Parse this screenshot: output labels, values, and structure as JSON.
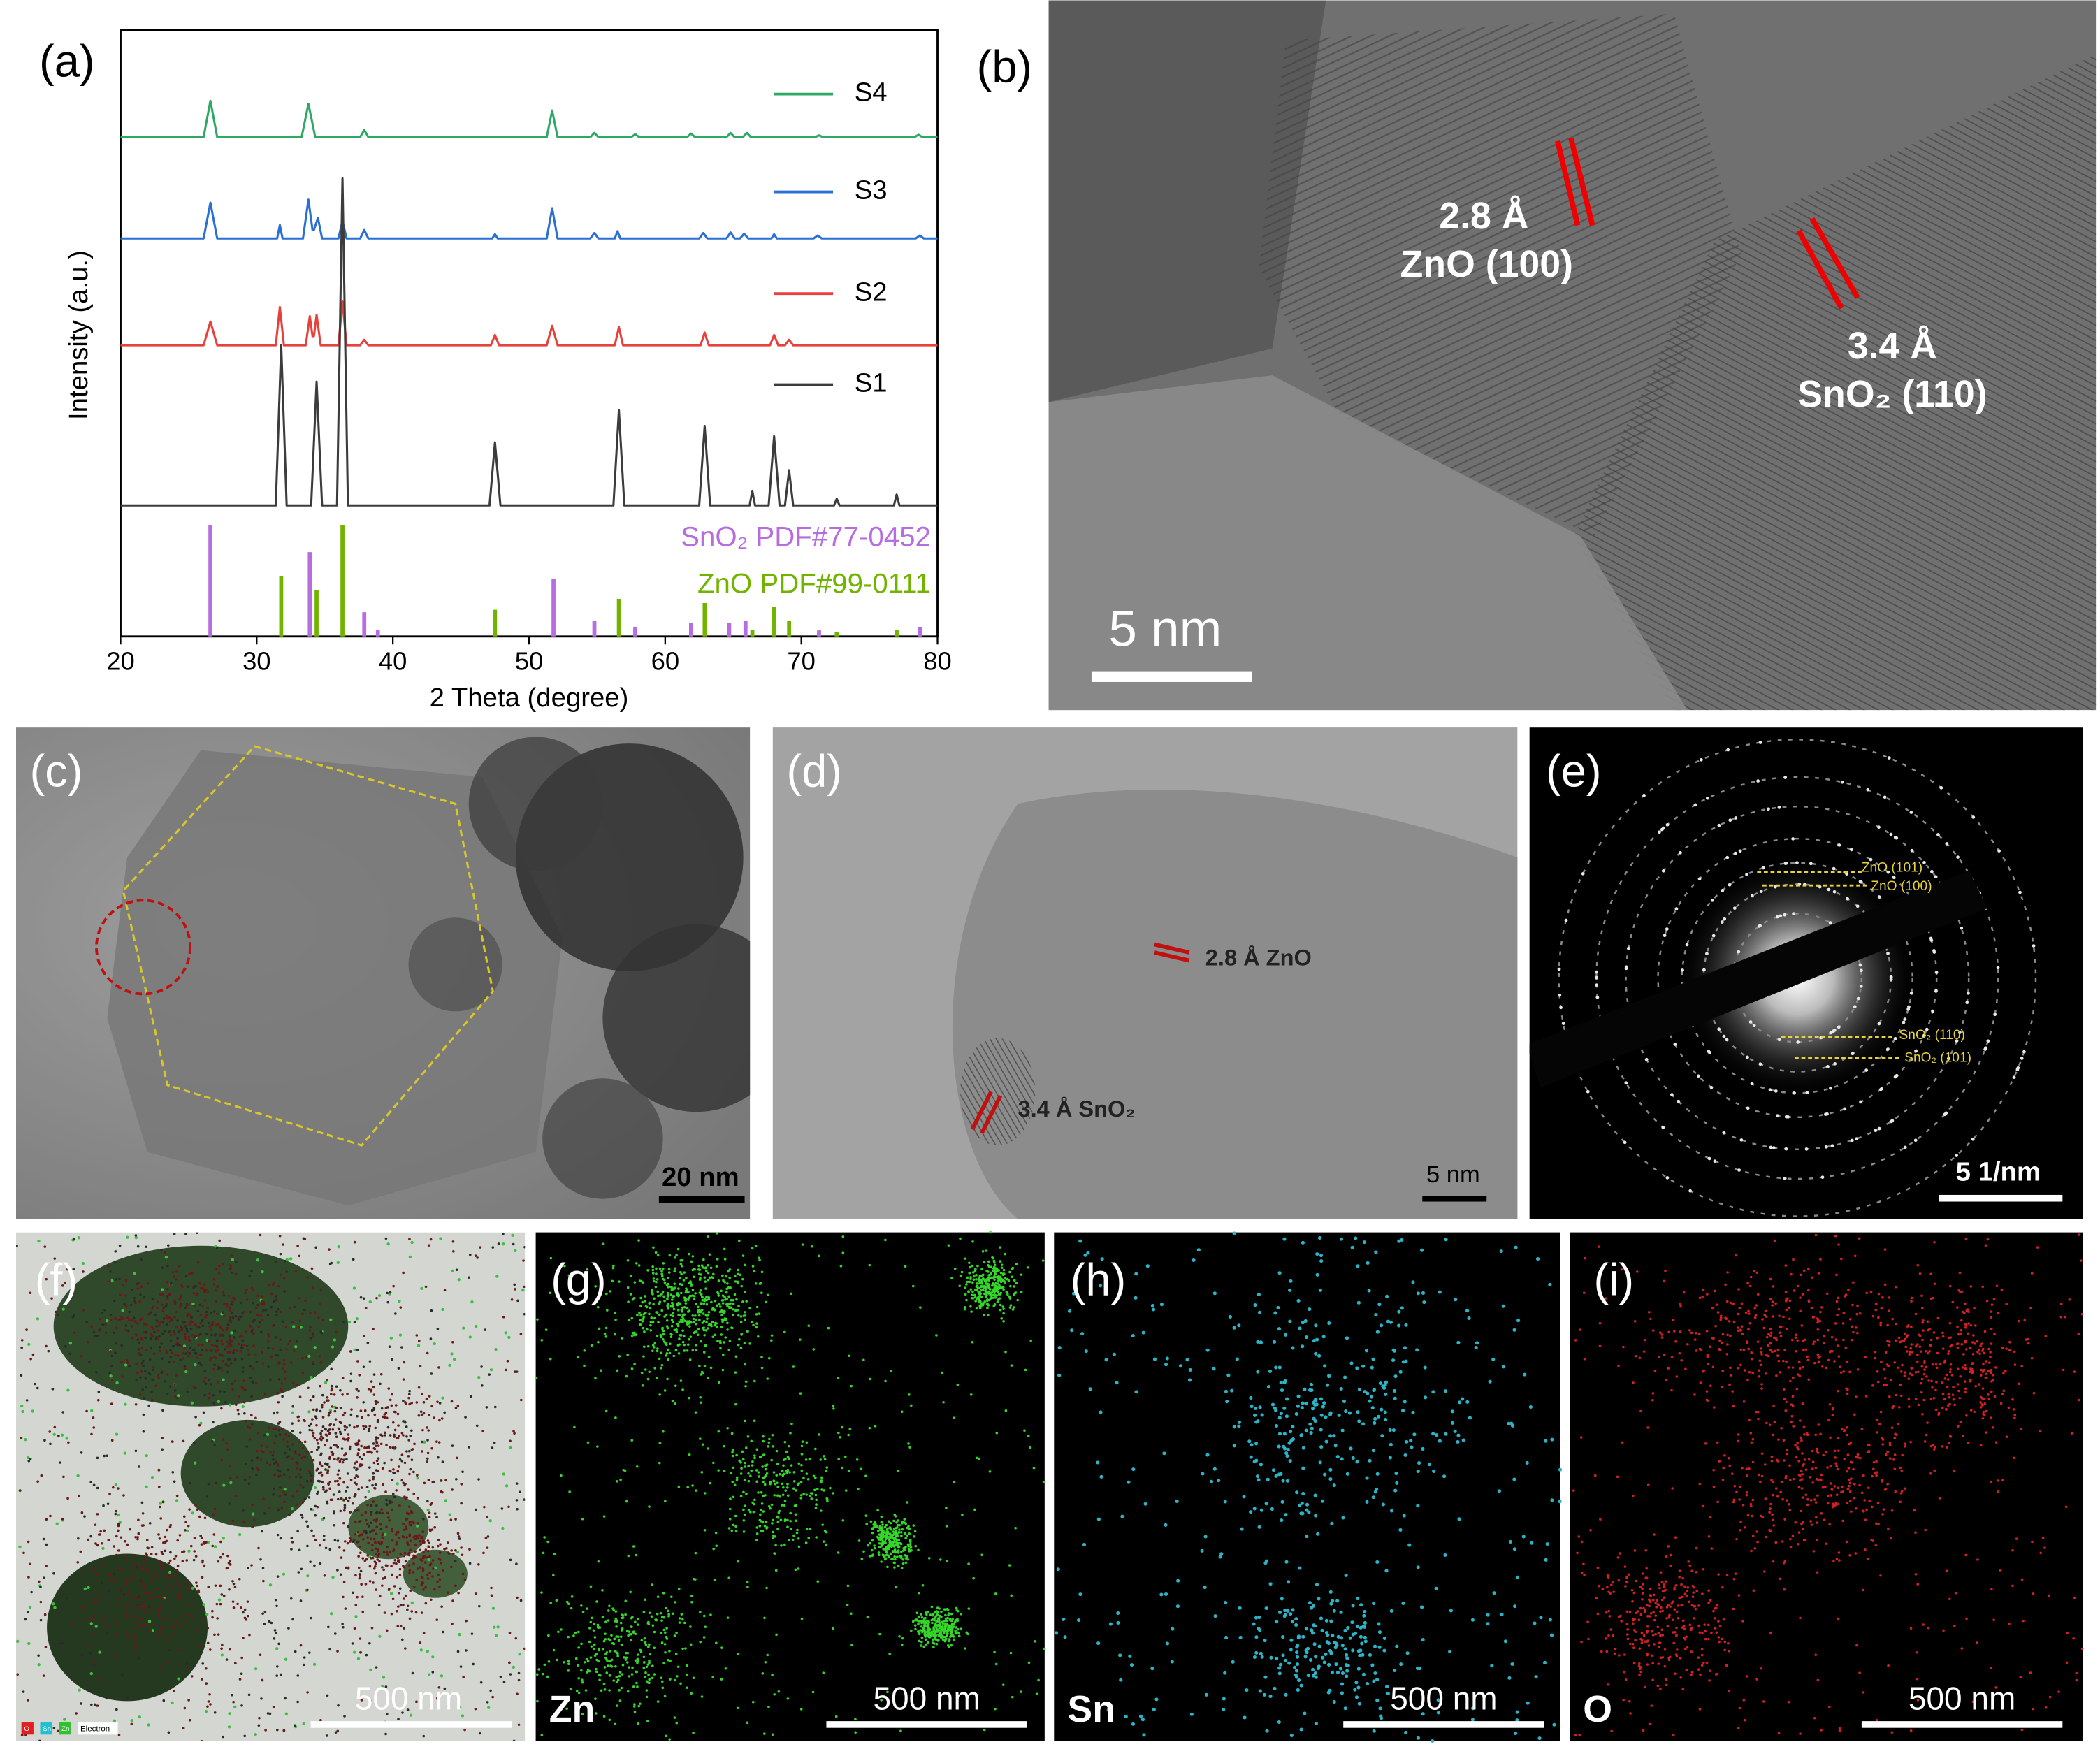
{
  "chart_data": {
    "type": "line",
    "label": "(a)",
    "xlabel": "2 Theta (degree)",
    "ylabel": "Intensity (a.u.)",
    "xlim": [
      20,
      80
    ],
    "xticks": [
      20,
      30,
      40,
      50,
      60,
      70,
      80
    ],
    "ylim": [
      0,
      100
    ],
    "series": [
      {
        "name": "S4",
        "color": "#2fa865",
        "x": [
          20,
          26.1,
          26.6,
          27.1,
          33.3,
          33.8,
          34.3,
          37.6,
          37.9,
          38.2,
          51.3,
          51.7,
          52.1,
          54.5,
          54.8,
          55.1,
          57.5,
          57.8,
          58.1,
          61.6,
          61.9,
          62.2,
          64.5,
          64.8,
          65.1,
          65.7,
          66.0,
          66.3,
          71.0,
          71.3,
          71.6,
          78.3,
          78.6,
          78.9,
          80
        ],
        "values": [
          82.3,
          82.3,
          88.3,
          82.3,
          82.3,
          87.8,
          82.3,
          82.3,
          83.5,
          82.3,
          82.3,
          86.7,
          82.3,
          82.3,
          83,
          82.3,
          82.3,
          82.8,
          82.3,
          82.3,
          82.9,
          82.3,
          82.3,
          83,
          82.3,
          82.3,
          83,
          82.3,
          82.3,
          82.6,
          82.3,
          82.3,
          82.7,
          82.3,
          82.3
        ]
      },
      {
        "name": "S3",
        "color": "#2a6fd4",
        "x": [
          20,
          26.1,
          26.6,
          27.1,
          31.5,
          31.7,
          31.9,
          33.4,
          33.8,
          34.1,
          34.2,
          34.5,
          34.8,
          36.0,
          36.3,
          36.6,
          37.6,
          37.9,
          38.2,
          47.3,
          47.5,
          47.7,
          51.3,
          51.7,
          52.1,
          54.5,
          54.8,
          55.1,
          56.3,
          56.5,
          56.7,
          62.5,
          62.8,
          63.1,
          64.5,
          64.8,
          65.1,
          65.5,
          65.8,
          66.1,
          67.8,
          68.0,
          68.2,
          70.9,
          71.2,
          71.5,
          78.4,
          78.7,
          79.0,
          80
        ],
        "values": [
          65.6,
          65.6,
          71.5,
          65.6,
          65.6,
          67.8,
          65.6,
          65.6,
          72,
          67,
          67,
          69,
          65.6,
          65.6,
          68.5,
          65.6,
          65.6,
          67,
          65.6,
          65.6,
          66.3,
          65.6,
          65.6,
          70.6,
          65.6,
          65.6,
          66.5,
          65.6,
          65.6,
          66.8,
          65.6,
          65.6,
          66.5,
          65.6,
          65.6,
          66.6,
          65.6,
          65.6,
          66.4,
          65.6,
          65.6,
          66.3,
          65.6,
          65.6,
          66.1,
          65.6,
          65.6,
          66.1,
          65.6,
          65.6
        ]
      },
      {
        "name": "S2",
        "color": "#e8413c",
        "x": [
          20,
          26.1,
          26.6,
          27.1,
          31.4,
          31.7,
          32.0,
          33.6,
          33.9,
          34.1,
          34.2,
          34.4,
          34.7,
          36.0,
          36.3,
          36.6,
          37.6,
          37.9,
          38.2,
          47.2,
          47.5,
          47.8,
          51.3,
          51.7,
          52.1,
          56.3,
          56.6,
          56.9,
          62.6,
          62.9,
          63.2,
          67.7,
          68.0,
          68.3,
          68.8,
          69.1,
          69.4,
          80
        ],
        "values": [
          48,
          48,
          51.9,
          48,
          48,
          54.3,
          48,
          48,
          52.8,
          49.5,
          49.5,
          53,
          48,
          48,
          55.2,
          48,
          48,
          48.9,
          48,
          48,
          49.7,
          48,
          48,
          51.2,
          48,
          48,
          51,
          48,
          48,
          50.1,
          48,
          48,
          49.7,
          48,
          48,
          48.9,
          48,
          48
        ]
      },
      {
        "name": "S1",
        "color": "#3c3c3c",
        "x": [
          20,
          31.4,
          31.8,
          32.2,
          34.0,
          34.4,
          34.8,
          35.9,
          36.3,
          36.7,
          47.1,
          47.5,
          47.9,
          56.2,
          56.6,
          57.0,
          62.5,
          62.9,
          63.3,
          66.2,
          66.4,
          66.6,
          67.6,
          68.0,
          68.4,
          68.8,
          69.1,
          69.4,
          72.4,
          72.6,
          72.8,
          76.8,
          77.0,
          77.2,
          80
        ],
        "values": [
          21.6,
          21.6,
          48,
          21.6,
          21.6,
          42,
          21.6,
          21.6,
          75.5,
          21.6,
          21.6,
          32,
          21.6,
          21.6,
          37.3,
          21.6,
          21.6,
          34.7,
          21.6,
          21.6,
          24,
          21.6,
          21.6,
          33,
          21.6,
          21.6,
          27.4,
          21.6,
          21.6,
          22.7,
          21.6,
          21.6,
          23.4,
          21.6,
          21.6
        ]
      }
    ],
    "references": [
      {
        "name": "SnO₂ PDF#77-0452",
        "color": "#b66de0",
        "x": [
          26.6,
          33.9,
          37.9,
          38.9,
          51.8,
          54.8,
          57.8,
          61.9,
          64.7,
          65.9,
          71.3,
          78.7
        ],
        "values": [
          18.3,
          13.9,
          4,
          1.1,
          9.5,
          2.6,
          1.5,
          2.2,
          2.2,
          2.6,
          1,
          1.5
        ]
      },
      {
        "name": "ZnO PDF#99-0111",
        "color": "#72b300",
        "x": [
          31.8,
          34.4,
          36.3,
          47.5,
          56.6,
          62.9,
          66.4,
          68.0,
          69.1,
          72.6,
          77.0
        ],
        "values": [
          9.9,
          7.7,
          18.3,
          4.4,
          6.2,
          5.5,
          1.1,
          4.9,
          2.6,
          0.7,
          1.1
        ]
      }
    ]
  },
  "panel_b": {
    "label": "(b)",
    "annotations": [
      "2.8 Å",
      "ZnO (100)",
      "3.4 Å",
      "SnO₂ (110)"
    ],
    "scale_bar": "5 nm"
  },
  "panel_c": {
    "label": "(c)",
    "scale_bar": "20 nm"
  },
  "panel_d": {
    "label": "(d)",
    "annotations": [
      "2.8 Å ZnO",
      "3.4 Å SnO₂"
    ],
    "scale_bar": "5 nm"
  },
  "panel_e": {
    "label": "(e)",
    "annotations": [
      "ZnO (101)",
      "ZnO (100)",
      "SnO₂ (110)",
      "SnO₂ (101)"
    ],
    "scale_bar": "5 1/nm"
  },
  "panel_f": {
    "label": "(f)",
    "legend": [
      "O",
      "Sn",
      "Zn",
      "Electron"
    ],
    "scale_bar": "500 nm"
  },
  "panel_g": {
    "label": "(g)",
    "element": "Zn",
    "scale_bar": "500 nm"
  },
  "panel_h": {
    "label": "(h)",
    "element": "Sn",
    "scale_bar": "500 nm"
  },
  "panel_i": {
    "label": "(i)",
    "element": "O",
    "scale_bar": "500 nm"
  }
}
